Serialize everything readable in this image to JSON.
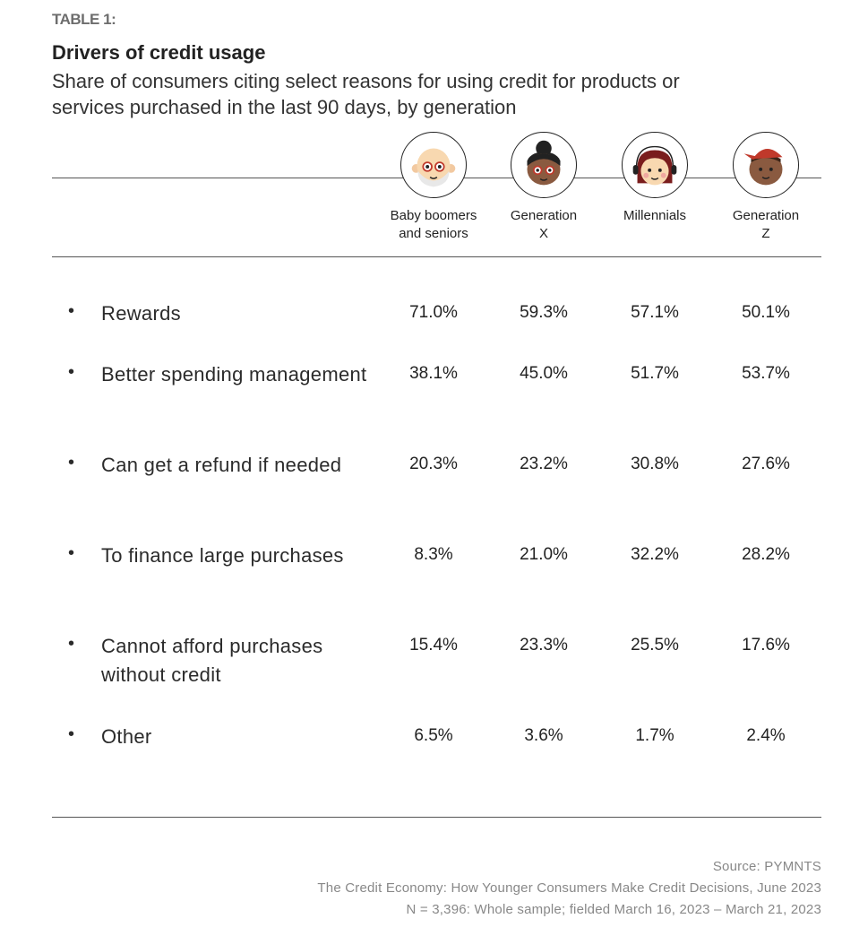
{
  "chart_data": {
    "type": "table",
    "label": "TABLE 1:",
    "title": "Drivers of credit usage",
    "subtitle": "Share of consumers citing select reasons for using credit for products or services purchased in the last 90 days, by generation",
    "columns": [
      {
        "name": "Baby boomers and seniors",
        "line1": "Baby boomers",
        "line2": "and seniors",
        "icon": "senior-avatar-icon"
      },
      {
        "name": "Generation X",
        "line1": "Generation",
        "line2": "X",
        "icon": "gen-x-avatar-icon"
      },
      {
        "name": "Millennials",
        "line1": "Millennials",
        "line2": "",
        "icon": "millennial-avatar-icon"
      },
      {
        "name": "Generation Z",
        "line1": "Generation",
        "line2": "Z",
        "icon": "gen-z-avatar-icon"
      }
    ],
    "rows": [
      {
        "label": "Rewards",
        "values": [
          "71.0%",
          "59.3%",
          "57.1%",
          "50.1%"
        ]
      },
      {
        "label": "Better spending management",
        "values": [
          "38.1%",
          "45.0%",
          "51.7%",
          "53.7%"
        ]
      },
      {
        "label": "Can get a refund if needed",
        "values": [
          "20.3%",
          "23.2%",
          "30.8%",
          "27.6%"
        ]
      },
      {
        "label": "To finance large purchases",
        "values": [
          "8.3%",
          "21.0%",
          "32.2%",
          "28.2%"
        ]
      },
      {
        "label": "Cannot afford purchases without credit",
        "values": [
          "15.4%",
          "23.3%",
          "25.5%",
          "17.6%"
        ]
      },
      {
        "label": "Other",
        "values": [
          "6.5%",
          "3.6%",
          "1.7%",
          "2.4%"
        ]
      }
    ],
    "bullet": "•"
  },
  "source": {
    "line1": "Source: PYMNTS",
    "line2": "The Credit Economy: How Younger Consumers Make Credit Decisions, June 2023",
    "line3": "N = 3,396: Whole sample; fielded March 16, 2023 – March 21, 2023"
  }
}
